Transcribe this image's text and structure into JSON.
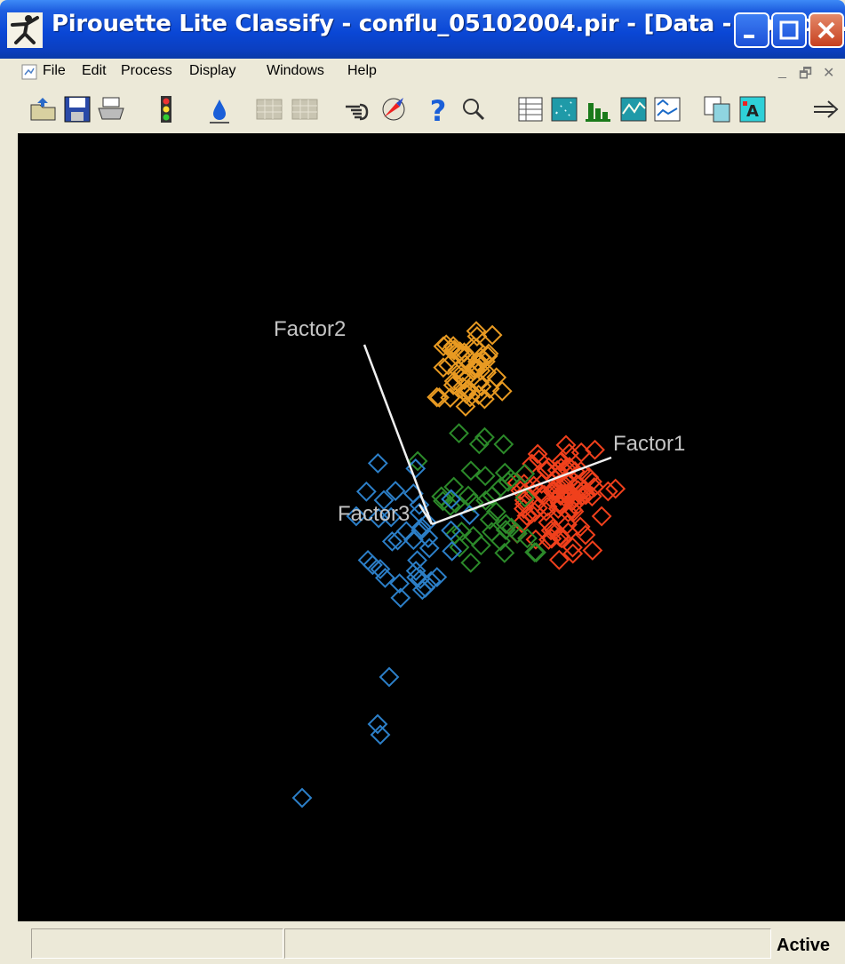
{
  "window": {
    "title": "Pirouette Lite Classify - conflu_05102004.pir - [Data - No Con...",
    "titlebar_color": "#0a47d6"
  },
  "menubar": {
    "items": [
      "File",
      "Edit",
      "Process",
      "Display",
      "Windows",
      "Help"
    ],
    "mdi_minimize": "_",
    "mdi_restore": "🗗",
    "mdi_close": "✕"
  },
  "toolbar": {
    "icons": [
      "open-icon",
      "save-icon",
      "print-icon",
      "traffic-light-icon",
      "drop-icon",
      "grid-copy-icon",
      "grid-paste-icon",
      "pointer-hand-icon",
      "rotate-icon",
      "help-icon",
      "magnifier-icon",
      "table-view-icon",
      "scatter-view-icon",
      "bar-chart-icon",
      "line-plot-icon",
      "multiplot-icon",
      "copy-icon",
      "label-icon",
      "arrow-icon"
    ]
  },
  "plot": {
    "background": "#000000",
    "axes": [
      {
        "label": "Factor1"
      },
      {
        "label": "Factor2"
      },
      {
        "label": "Factor3"
      }
    ],
    "class_colors": {
      "orange": "#e89a22",
      "red": "#f0401c",
      "green": "#2c8a2a",
      "blue": "#2c7fc8"
    }
  },
  "statusbar": {
    "status": "Active"
  }
}
